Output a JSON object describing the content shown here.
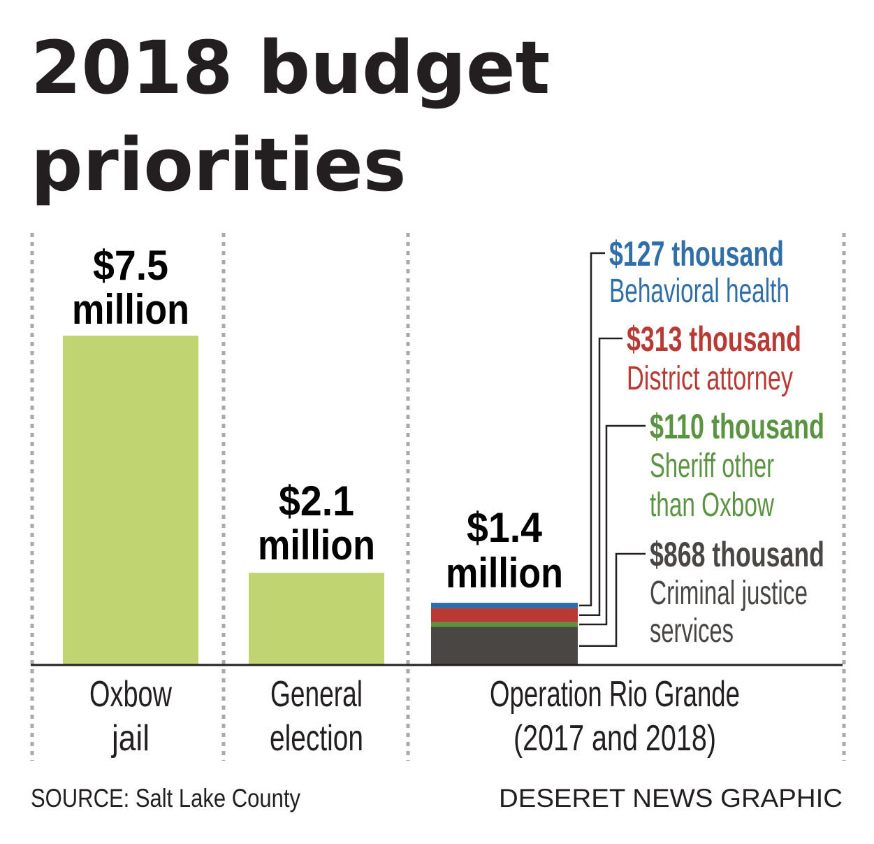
{
  "title_line1": "2018 budget",
  "title_line2": "priorities",
  "source": "SOURCE: Salt Lake County",
  "credit": "DESERET NEWS GRAPHIC",
  "colors": {
    "bar_green": "#c0d571",
    "behavioral_health": "#2f6ea8",
    "district_attorney": "#b93a35",
    "sheriff_other": "#5a9443",
    "criminal_justice": "#4a4644",
    "text": "#231f20",
    "divider": "#a7a9ac"
  },
  "chart_data": {
    "type": "bar",
    "unit": "million dollars",
    "ylim": [
      0,
      7.5
    ],
    "categories": [
      {
        "name_lines": [
          "Oxbow",
          "jail"
        ],
        "value": 7.5,
        "label_lines": [
          "$7.5",
          "million"
        ]
      },
      {
        "name_lines": [
          "General",
          "election"
        ],
        "value": 2.1,
        "label_lines": [
          "$2.1",
          "million"
        ]
      },
      {
        "name_lines": [
          "Operation Rio Grande",
          "(2017 and 2018)"
        ],
        "value": 1.4,
        "label_lines": [
          "$1.4",
          "million"
        ],
        "stacked": true,
        "segments": [
          {
            "name": "Criminal justice services",
            "value": 0.868,
            "amount": "$868 thousand",
            "desc_lines": [
              "Criminal justice",
              "services"
            ],
            "color_key": "criminal_justice"
          },
          {
            "name": "Sheriff other than Oxbow",
            "value": 0.11,
            "amount": "$110 thousand",
            "desc_lines": [
              "Sheriff other",
              "than Oxbow"
            ],
            "color_key": "sheriff_other"
          },
          {
            "name": "District attorney",
            "value": 0.313,
            "amount": "$313 thousand",
            "desc_lines": [
              "District attorney"
            ],
            "color_key": "district_attorney"
          },
          {
            "name": "Behavioral health",
            "value": 0.127,
            "amount": "$127 thousand",
            "desc_lines": [
              "Behavioral health"
            ],
            "color_key": "behavioral_health"
          }
        ]
      }
    ]
  }
}
